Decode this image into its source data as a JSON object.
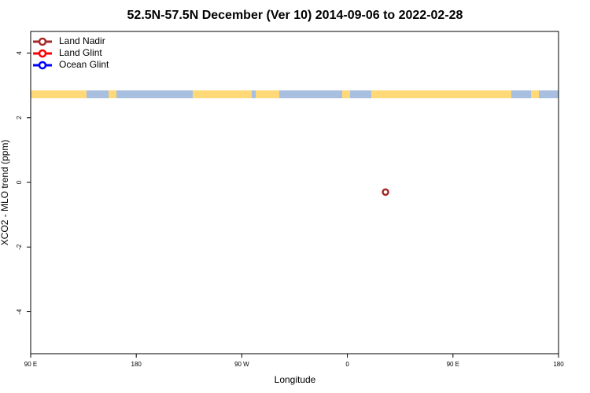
{
  "chart_data": {
    "type": "scatter",
    "title": "52.5N-57.5N December (Ver 10)   2014-09-06 to 2022-02-28",
    "x_label": "Longitude",
    "y_label": "XCO2 - MLO trend (ppm)",
    "xlim": [
      90,
      540
    ],
    "ylim": [
      -5.3,
      4.67
    ],
    "xticks": [
      {
        "value": 90,
        "label": "90 E"
      },
      {
        "value": 180,
        "label": "180"
      },
      {
        "value": 270,
        "label": "90 W"
      },
      {
        "value": 360,
        "label": "0"
      },
      {
        "value": 450,
        "label": "90 E"
      },
      {
        "value": 540,
        "label": "180"
      }
    ],
    "yticks": [
      -4,
      -2,
      0,
      2,
      4
    ],
    "legend": "top-left",
    "series": [
      {
        "name": "Land Nadir",
        "color": "#a52a2a",
        "x": [
          392.5
        ],
        "values": [
          -0.3
        ]
      },
      {
        "name": "Land Glint",
        "color": "#ff0000",
        "x": [],
        "values": []
      },
      {
        "name": "Ocean Glint",
        "color": "#0000ff",
        "x": [],
        "values": []
      }
    ]
  }
}
